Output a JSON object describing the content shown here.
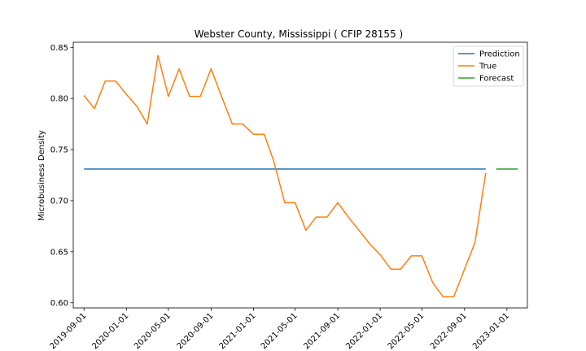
{
  "chart_data": {
    "type": "line",
    "title": "Webster County, Mississippi ( CFIP 28155 )",
    "xlabel": "",
    "ylabel": "Microbusiness Density",
    "ylim": [
      0.595,
      0.855
    ],
    "xlim": [
      "2019-08-01",
      "2023-03-01"
    ],
    "grid": false,
    "legend_position": "top-right",
    "x_ticks": [
      "2019-09-01",
      "2020-01-01",
      "2020-05-01",
      "2020-09-01",
      "2021-01-01",
      "2021-05-01",
      "2021-09-01",
      "2022-01-01",
      "2022-05-01",
      "2022-09-01",
      "2023-01-01"
    ],
    "y_ticks": [
      0.6,
      0.65,
      0.7,
      0.75,
      0.8,
      0.85
    ],
    "series": [
      {
        "name": "Prediction",
        "color": "#1f77b4",
        "x": [
          "2019-09-01",
          "2022-11-01"
        ],
        "y": [
          0.731,
          0.731
        ]
      },
      {
        "name": "True",
        "color": "#ff7f0e",
        "x": [
          "2019-09-01",
          "2019-10-01",
          "2019-11-01",
          "2019-12-01",
          "2020-01-01",
          "2020-02-01",
          "2020-03-01",
          "2020-04-01",
          "2020-05-01",
          "2020-06-01",
          "2020-07-01",
          "2020-08-01",
          "2020-09-01",
          "2020-10-01",
          "2020-11-01",
          "2020-12-01",
          "2021-01-01",
          "2021-02-01",
          "2021-03-01",
          "2021-04-01",
          "2021-05-01",
          "2021-06-01",
          "2021-07-01",
          "2021-08-01",
          "2021-09-01",
          "2021-10-01",
          "2021-11-01",
          "2021-12-01",
          "2022-01-01",
          "2022-02-01",
          "2022-03-01",
          "2022-04-01",
          "2022-05-01",
          "2022-06-01",
          "2022-07-01",
          "2022-08-01",
          "2022-09-01",
          "2022-10-01",
          "2022-11-01"
        ],
        "y": [
          0.803,
          0.79,
          0.817,
          0.817,
          0.804,
          0.792,
          0.775,
          0.842,
          0.802,
          0.829,
          0.802,
          0.802,
          0.829,
          0.802,
          0.775,
          0.775,
          0.765,
          0.765,
          0.738,
          0.698,
          0.698,
          0.671,
          0.684,
          0.684,
          0.698,
          0.684,
          0.671,
          0.658,
          0.647,
          0.633,
          0.633,
          0.646,
          0.646,
          0.62,
          0.606,
          0.606,
          0.633,
          0.659,
          0.727
        ]
      },
      {
        "name": "Forecast",
        "color": "#2ca02c",
        "x": [
          "2022-12-01",
          "2023-02-01"
        ],
        "y": [
          0.731,
          0.731
        ]
      }
    ]
  }
}
